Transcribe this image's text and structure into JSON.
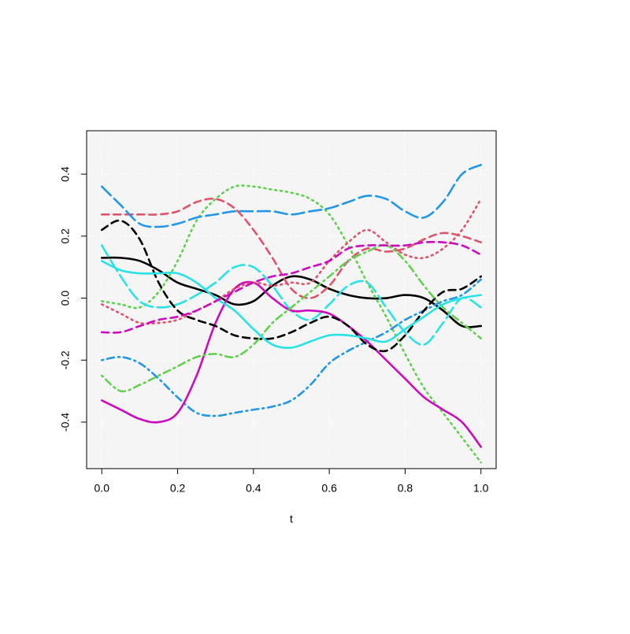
{
  "chart_data": {
    "type": "line",
    "x_label": "t",
    "x": [
      0,
      0.05,
      0.1,
      0.15,
      0.2,
      0.25,
      0.3,
      0.35,
      0.4,
      0.45,
      0.5,
      0.55,
      0.6,
      0.65,
      0.7,
      0.75,
      0.8,
      0.85,
      0.9,
      0.95,
      1.0
    ],
    "xlim": [
      -0.04,
      1.04
    ],
    "ylim": [
      -0.55,
      0.54
    ],
    "xticks": [
      {
        "value": 0,
        "label": "0.0"
      },
      0.2,
      0.4,
      0.6,
      0.8,
      {
        "value": 1,
        "label": "1.0"
      }
    ],
    "yticks": [
      -0.4,
      -0.2,
      {
        "value": 0,
        "label": "0.0"
      },
      0.2,
      0.4
    ],
    "grid": true,
    "series": [
      {
        "color": "#000000",
        "line_style": "solid",
        "values": [
          0.13,
          0.13,
          0.12,
          0.09,
          0.05,
          0.03,
          0.01,
          -0.02,
          -0.01,
          0.04,
          0.07,
          0.06,
          0.03,
          0.01,
          0.0,
          0.0,
          0.01,
          0.0,
          -0.04,
          -0.09,
          -0.09
        ]
      },
      {
        "color": "#DF536B",
        "line_style": "dashed",
        "values": [
          0.27,
          0.27,
          0.27,
          0.27,
          0.28,
          0.31,
          0.32,
          0.29,
          0.22,
          0.13,
          0.03,
          0.0,
          0.04,
          0.12,
          0.16,
          0.15,
          0.16,
          0.19,
          0.21,
          0.2,
          0.18
        ]
      },
      {
        "color": "#61D04F",
        "line_style": "dotted",
        "values": [
          -0.01,
          -0.02,
          -0.03,
          0.02,
          0.12,
          0.25,
          0.32,
          0.36,
          0.36,
          0.35,
          0.34,
          0.32,
          0.27,
          0.17,
          0.05,
          -0.06,
          -0.18,
          -0.29,
          -0.37,
          -0.45,
          -0.53
        ]
      },
      {
        "color": "#2297E6",
        "line_style": "dotdash",
        "values": [
          -0.2,
          -0.19,
          -0.21,
          -0.26,
          -0.32,
          -0.37,
          -0.38,
          -0.37,
          -0.36,
          -0.35,
          -0.33,
          -0.28,
          -0.21,
          -0.17,
          -0.14,
          -0.11,
          -0.07,
          -0.04,
          -0.01,
          0.01,
          0.06
        ]
      },
      {
        "color": "#28E2E5",
        "line_style": "longdash",
        "values": [
          0.17,
          0.07,
          -0.01,
          -0.03,
          -0.02,
          0.01,
          0.05,
          0.1,
          0.1,
          0.04,
          -0.04,
          -0.07,
          -0.02,
          0.04,
          0.05,
          -0.03,
          -0.11,
          -0.15,
          -0.08,
          0.0,
          -0.03
        ]
      },
      {
        "color": "#CD0BBC",
        "line_style": "solid",
        "values": [
          -0.33,
          -0.36,
          -0.39,
          -0.4,
          -0.37,
          -0.25,
          -0.08,
          0.03,
          0.05,
          0.0,
          -0.04,
          -0.04,
          -0.05,
          -0.09,
          -0.14,
          -0.2,
          -0.26,
          -0.32,
          -0.36,
          -0.4,
          -0.48
        ]
      },
      {
        "color": "#000000",
        "line_style": "dashed",
        "values": [
          0.22,
          0.25,
          0.19,
          0.05,
          -0.04,
          -0.07,
          -0.09,
          -0.12,
          -0.13,
          -0.13,
          -0.11,
          -0.08,
          -0.06,
          -0.09,
          -0.15,
          -0.17,
          -0.12,
          -0.04,
          0.02,
          0.03,
          0.07
        ]
      },
      {
        "color": "#DF536B",
        "line_style": "dotted",
        "values": [
          -0.02,
          -0.05,
          -0.08,
          -0.08,
          -0.07,
          -0.04,
          -0.01,
          0.03,
          0.05,
          0.04,
          0.05,
          0.05,
          0.12,
          0.18,
          0.22,
          0.18,
          0.14,
          0.13,
          0.16,
          0.22,
          0.32
        ]
      },
      {
        "color": "#61D04F",
        "line_style": "dotdash",
        "values": [
          -0.25,
          -0.3,
          -0.28,
          -0.25,
          -0.22,
          -0.19,
          -0.18,
          -0.19,
          -0.15,
          -0.08,
          -0.03,
          0.02,
          0.07,
          0.12,
          0.15,
          0.17,
          0.12,
          0.04,
          -0.03,
          -0.08,
          -0.13
        ]
      },
      {
        "color": "#2297E6",
        "line_style": "longdash",
        "values": [
          0.36,
          0.3,
          0.24,
          0.23,
          0.24,
          0.26,
          0.27,
          0.28,
          0.28,
          0.28,
          0.27,
          0.28,
          0.29,
          0.31,
          0.33,
          0.32,
          0.28,
          0.26,
          0.31,
          0.4,
          0.43
        ]
      },
      {
        "color": "#28E2E5",
        "line_style": "solid",
        "values": [
          0.12,
          0.09,
          0.08,
          0.08,
          0.08,
          0.05,
          0.0,
          -0.04,
          -0.1,
          -0.15,
          -0.16,
          -0.14,
          -0.12,
          -0.12,
          -0.13,
          -0.14,
          -0.1,
          -0.06,
          -0.02,
          0.0,
          0.01
        ]
      },
      {
        "color": "#CD0BBC",
        "line_style": "dashed",
        "values": [
          -0.11,
          -0.11,
          -0.09,
          -0.07,
          -0.06,
          -0.04,
          -0.01,
          0.02,
          0.05,
          0.07,
          0.08,
          0.1,
          0.12,
          0.16,
          0.17,
          0.17,
          0.17,
          0.18,
          0.18,
          0.17,
          0.14
        ]
      }
    ]
  }
}
